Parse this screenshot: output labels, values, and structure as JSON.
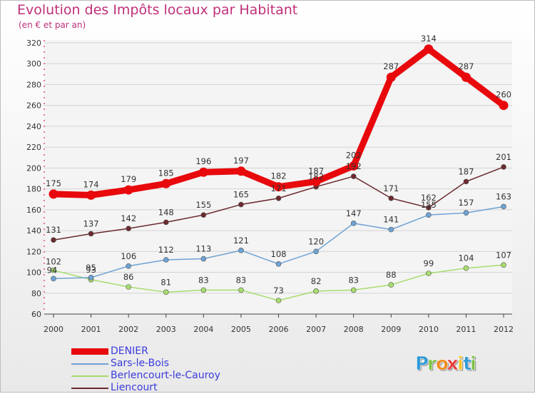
{
  "chart_data": {
    "type": "line",
    "title": "Evolution des Impôts locaux par Habitant",
    "subtitle": "(en € et par an)",
    "xlabel": "",
    "ylabel": "",
    "categories": [
      "2000",
      "2001",
      "2002",
      "2003",
      "2004",
      "2005",
      "2006",
      "2007",
      "2008",
      "2009",
      "2010",
      "2011",
      "2012"
    ],
    "ylim": [
      60,
      320
    ],
    "yticks": [
      60,
      80,
      100,
      120,
      140,
      160,
      180,
      200,
      220,
      240,
      260,
      280,
      300,
      320
    ],
    "grid": true,
    "legend_position": "bottom-left",
    "series": [
      {
        "name": "DENIER",
        "color": "#e8090c",
        "values": [
          175,
          174,
          179,
          185,
          196,
          197,
          182,
          187,
          202,
          287,
          314,
          287,
          260
        ]
      },
      {
        "name": "Sars-le-Bois",
        "color": "#6ea3d4",
        "values": [
          94,
          95,
          106,
          112,
          113,
          121,
          108,
          120,
          147,
          141,
          155,
          157,
          163
        ]
      },
      {
        "name": "Berlencourt-le-Cauroy",
        "color": "#a6dd6e",
        "values": [
          102,
          93,
          86,
          81,
          83,
          83,
          73,
          82,
          83,
          88,
          99,
          104,
          107
        ]
      },
      {
        "name": "Liencourt",
        "color": "#6b2a2f",
        "values": [
          131,
          137,
          142,
          148,
          155,
          165,
          171,
          182,
          192,
          171,
          162,
          187,
          201
        ]
      }
    ]
  },
  "logo": {
    "text": "Proxiti",
    "letters": [
      "P",
      "r",
      "o",
      "x",
      "i",
      "t",
      "i"
    ],
    "colors": [
      "#2f9ad6",
      "#7cc242",
      "#f08a1d",
      "#e63b3b",
      "#f6c21c",
      "#2f9ad6",
      "#7cc242"
    ]
  }
}
